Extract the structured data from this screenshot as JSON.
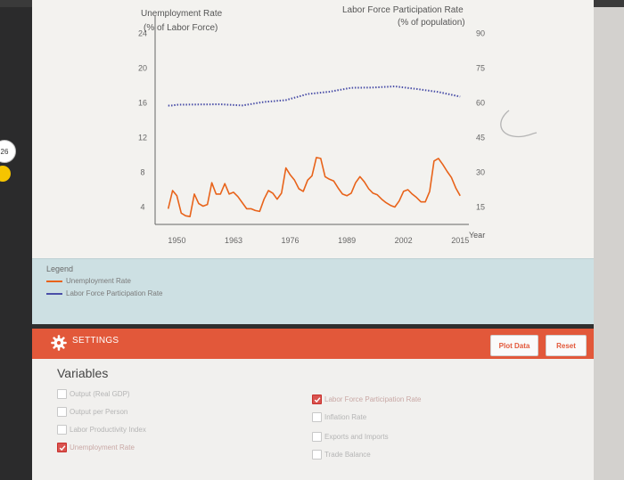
{
  "browser": {
    "page_number": "26"
  },
  "chart_data": {
    "type": "line",
    "left_axis": {
      "title_line1": "Unemployment Rate",
      "title_line2": "(% of Labor Force)",
      "ticks": [
        "24",
        "20",
        "16",
        "12",
        "8",
        "4"
      ]
    },
    "right_axis": {
      "title_line1": "Labor Force Participation Rate",
      "title_line2": "(% of population)",
      "ticks": [
        "90",
        "75",
        "60",
        "45",
        "30",
        "15"
      ]
    },
    "x_axis": {
      "label": "Year",
      "ticks": [
        "1950",
        "1963",
        "1976",
        "1989",
        "2002",
        "2015"
      ]
    },
    "series": [
      {
        "name": "Unemployment Rate",
        "color": "#e8631a",
        "axis": "left",
        "x": [
          1948,
          1949,
          1950,
          1951,
          1952,
          1953,
          1954,
          1955,
          1956,
          1957,
          1958,
          1959,
          1960,
          1961,
          1962,
          1963,
          1964,
          1965,
          1966,
          1967,
          1968,
          1969,
          1970,
          1971,
          1972,
          1973,
          1974,
          1975,
          1976,
          1977,
          1978,
          1979,
          1980,
          1981,
          1982,
          1983,
          1984,
          1985,
          1986,
          1987,
          1988,
          1989,
          1990,
          1991,
          1992,
          1993,
          1994,
          1995,
          1996,
          1997,
          1998,
          1999,
          2000,
          2001,
          2002,
          2003,
          2004,
          2005,
          2006,
          2007,
          2008,
          2009,
          2010,
          2011,
          2012,
          2013,
          2014,
          2015
        ],
        "y": [
          3.8,
          5.9,
          5.3,
          3.3,
          3.0,
          2.9,
          5.5,
          4.4,
          4.1,
          4.3,
          6.8,
          5.5,
          5.5,
          6.7,
          5.5,
          5.7,
          5.2,
          4.5,
          3.8,
          3.8,
          3.6,
          3.5,
          4.9,
          5.9,
          5.6,
          4.9,
          5.6,
          8.5,
          7.7,
          7.1,
          6.1,
          5.8,
          7.1,
          7.6,
          9.7,
          9.6,
          7.5,
          7.2,
          7.0,
          6.2,
          5.5,
          5.3,
          5.6,
          6.8,
          7.5,
          6.9,
          6.1,
          5.6,
          5.4,
          4.9,
          4.5,
          4.2,
          4.0,
          4.7,
          5.8,
          6.0,
          5.5,
          5.1,
          4.6,
          4.6,
          5.8,
          9.3,
          9.6,
          8.9,
          8.1,
          7.4,
          6.2,
          5.3
        ]
      },
      {
        "name": "Labor Force Participation Rate",
        "color": "#4a4fa8",
        "axis": "right",
        "style": "dotted",
        "x": [
          1948,
          1949,
          1950,
          1955,
          1960,
          1965,
          1970,
          1975,
          1980,
          1985,
          1990,
          1995,
          2000,
          2005,
          2010,
          2015
        ],
        "y": [
          58.8,
          58.9,
          59.2,
          59.3,
          59.4,
          58.9,
          60.4,
          61.2,
          63.8,
          64.8,
          66.5,
          66.6,
          67.1,
          66.0,
          64.7,
          62.7
        ]
      }
    ],
    "xlim": [
      1945,
      2017
    ],
    "ylim_left": [
      2,
      26
    ],
    "ylim_right": [
      7.5,
      97.5
    ]
  },
  "legend": {
    "title": "Legend",
    "items": [
      {
        "label": "Unemployment Rate",
        "color": "#e8631a"
      },
      {
        "label": "Labor Force Participation Rate",
        "color": "#4a4fa8"
      }
    ]
  },
  "settings": {
    "label": "SETTINGS",
    "plot_button": "Plot Data",
    "reset_button": "Reset"
  },
  "variables": {
    "title": "Variables",
    "left": [
      {
        "label": "Output (Real GDP)",
        "checked": false
      },
      {
        "label": "Output per Person",
        "checked": false
      },
      {
        "label": "Labor Productivity Index",
        "checked": false
      },
      {
        "label": "Unemployment Rate",
        "checked": true
      }
    ],
    "right": [
      {
        "label": "Labor Force Participation Rate",
        "checked": true
      },
      {
        "label": "Inflation Rate",
        "checked": false
      },
      {
        "label": "Exports and Imports",
        "checked": false
      },
      {
        "label": "Trade Balance",
        "checked": false
      }
    ]
  }
}
